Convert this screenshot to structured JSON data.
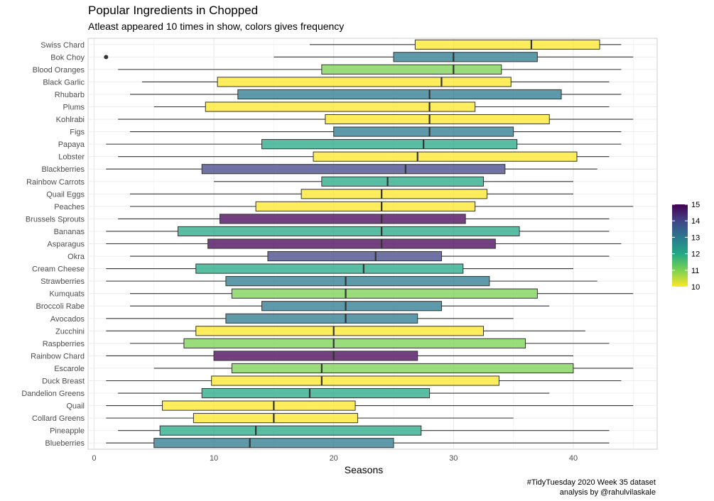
{
  "chart_data": {
    "type": "boxplot",
    "title": "Popular Ingredients in Chopped",
    "subtitle": "Atleast appeared 10 times in show, colors gives frequency",
    "xlabel": "Seasons",
    "ylabel": "",
    "xlim": [
      -0.5,
      47
    ],
    "xticks": [
      0,
      10,
      20,
      30,
      40
    ],
    "grid": true,
    "legend": {
      "position": "right",
      "type": "colorbar",
      "range": [
        10,
        15
      ],
      "ticks": [
        10,
        11,
        12,
        13,
        14,
        15
      ],
      "colors": [
        "#fde725",
        "#7ad151",
        "#22a884",
        "#2a788e",
        "#414487",
        "#440154"
      ]
    },
    "series": [
      {
        "category": "Swiss Chard",
        "min": 18,
        "q1": 26.8,
        "median": 36.5,
        "q3": 42.2,
        "max": 44,
        "frequency": 10,
        "outliers": []
      },
      {
        "category": "Bok Choy",
        "min": 15,
        "q1": 25,
        "median": 30,
        "q3": 37,
        "max": 45,
        "frequency": 13,
        "outliers": [
          1
        ]
      },
      {
        "category": "Blood Oranges",
        "min": 2,
        "q1": 19,
        "median": 30,
        "q3": 34,
        "max": 44,
        "frequency": 11,
        "outliers": []
      },
      {
        "category": "Black Garlic",
        "min": 4,
        "q1": 10.3,
        "median": 29,
        "q3": 34.8,
        "max": 43,
        "frequency": 10,
        "outliers": []
      },
      {
        "category": "Rhubarb",
        "min": 3,
        "q1": 12,
        "median": 28,
        "q3": 39,
        "max": 44,
        "frequency": 13,
        "outliers": []
      },
      {
        "category": "Plums",
        "min": 5,
        "q1": 9.3,
        "median": 28,
        "q3": 31.8,
        "max": 43,
        "frequency": 10,
        "outliers": []
      },
      {
        "category": "Kohlrabi",
        "min": 2,
        "q1": 19.3,
        "median": 28,
        "q3": 38,
        "max": 45,
        "frequency": 10,
        "outliers": []
      },
      {
        "category": "Figs",
        "min": 3,
        "q1": 20,
        "median": 28,
        "q3": 35,
        "max": 44,
        "frequency": 13,
        "outliers": []
      },
      {
        "category": "Papaya",
        "min": 1,
        "q1": 14,
        "median": 27.5,
        "q3": 35.3,
        "max": 44,
        "frequency": 12,
        "outliers": []
      },
      {
        "category": "Lobster",
        "min": 2,
        "q1": 18.3,
        "median": 27,
        "q3": 40.3,
        "max": 43,
        "frequency": 10,
        "outliers": []
      },
      {
        "category": "Blackberries",
        "min": 1,
        "q1": 9,
        "median": 26,
        "q3": 34.3,
        "max": 42,
        "frequency": 14,
        "outliers": []
      },
      {
        "category": "Rainbow Carrots",
        "min": 10,
        "q1": 19,
        "median": 24.5,
        "q3": 32.5,
        "max": 40,
        "frequency": 12,
        "outliers": []
      },
      {
        "category": "Quail Eggs",
        "min": 3,
        "q1": 17.3,
        "median": 24,
        "q3": 32.8,
        "max": 40,
        "frequency": 10,
        "outliers": []
      },
      {
        "category": "Peaches",
        "min": 3,
        "q1": 13.5,
        "median": 24,
        "q3": 31.8,
        "max": 45,
        "frequency": 10,
        "outliers": []
      },
      {
        "category": "Brussels Sprouts",
        "min": 2,
        "q1": 10.5,
        "median": 24,
        "q3": 31,
        "max": 43,
        "frequency": 15,
        "outliers": []
      },
      {
        "category": "Bananas",
        "min": 1,
        "q1": 7,
        "median": 24,
        "q3": 35.5,
        "max": 43,
        "frequency": 12,
        "outliers": []
      },
      {
        "category": "Asparagus",
        "min": 1,
        "q1": 9.5,
        "median": 24,
        "q3": 33.5,
        "max": 44,
        "frequency": 15,
        "outliers": []
      },
      {
        "category": "Okra",
        "min": 3,
        "q1": 14.5,
        "median": 23.5,
        "q3": 29,
        "max": 43,
        "frequency": 14,
        "outliers": []
      },
      {
        "category": "Cream Cheese",
        "min": 1,
        "q1": 8.5,
        "median": 22.5,
        "q3": 30.8,
        "max": 40,
        "frequency": 12,
        "outliers": []
      },
      {
        "category": "Strawberries",
        "min": 1,
        "q1": 11,
        "median": 21,
        "q3": 33,
        "max": 42,
        "frequency": 13,
        "outliers": []
      },
      {
        "category": "Kumquats",
        "min": 3,
        "q1": 11.5,
        "median": 21,
        "q3": 37,
        "max": 45,
        "frequency": 11,
        "outliers": []
      },
      {
        "category": "Broccoli Rabe",
        "min": 3,
        "q1": 14,
        "median": 21,
        "q3": 29,
        "max": 38,
        "frequency": 13,
        "outliers": []
      },
      {
        "category": "Avocados",
        "min": 1,
        "q1": 11,
        "median": 21,
        "q3": 27,
        "max": 35,
        "frequency": 13,
        "outliers": []
      },
      {
        "category": "Zucchini",
        "min": 1,
        "q1": 8.5,
        "median": 20,
        "q3": 32.5,
        "max": 41,
        "frequency": 10,
        "outliers": []
      },
      {
        "category": "Raspberries",
        "min": 3,
        "q1": 7.5,
        "median": 20,
        "q3": 36,
        "max": 43,
        "frequency": 11,
        "outliers": []
      },
      {
        "category": "Rainbow Chard",
        "min": 1,
        "q1": 10,
        "median": 20,
        "q3": 27,
        "max": 40,
        "frequency": 15,
        "outliers": []
      },
      {
        "category": "Escarole",
        "min": 5,
        "q1": 11.5,
        "median": 19,
        "q3": 40,
        "max": 45,
        "frequency": 11,
        "outliers": []
      },
      {
        "category": "Duck Breast",
        "min": 1,
        "q1": 9.8,
        "median": 19,
        "q3": 33.8,
        "max": 44,
        "frequency": 10,
        "outliers": []
      },
      {
        "category": "Dandelion Greens",
        "min": 2,
        "q1": 9,
        "median": 18,
        "q3": 28,
        "max": 38,
        "frequency": 12,
        "outliers": []
      },
      {
        "category": "Quail",
        "min": 1,
        "q1": 5.7,
        "median": 15,
        "q3": 21.8,
        "max": 45,
        "frequency": 10,
        "outliers": []
      },
      {
        "category": "Collard Greens",
        "min": 1,
        "q1": 8.3,
        "median": 15,
        "q3": 22,
        "max": 35,
        "frequency": 10,
        "outliers": []
      },
      {
        "category": "Pineapple",
        "min": 2,
        "q1": 5.5,
        "median": 13.5,
        "q3": 27.3,
        "max": 43,
        "frequency": 12,
        "outliers": []
      },
      {
        "category": "Blueberries",
        "min": 1,
        "q1": 5,
        "median": 13,
        "q3": 25,
        "max": 43,
        "frequency": 13,
        "outliers": []
      }
    ]
  },
  "caption": {
    "line1": "#TidyTuesday 2020 Week 35 dataset",
    "line2": "analysis by @rahulvilaskale"
  }
}
